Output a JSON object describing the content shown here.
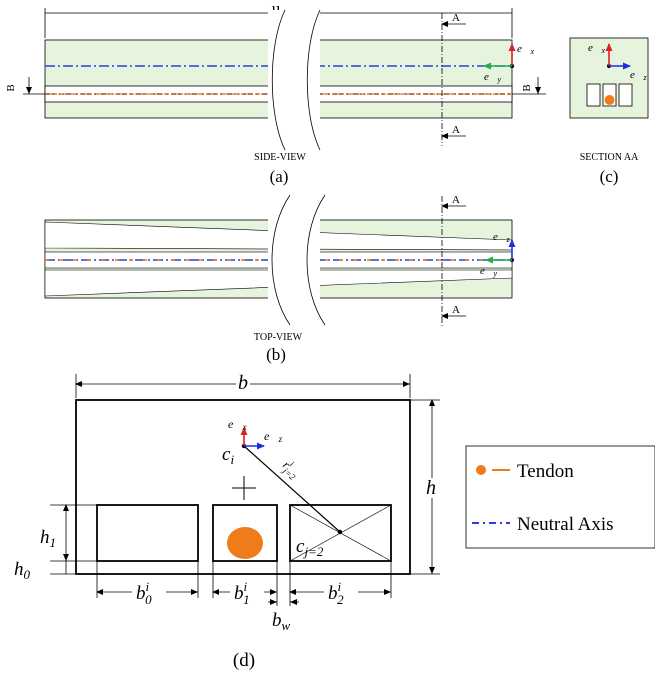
{
  "side_view": {
    "length_label": "u",
    "caption": "SIDE-VIEW",
    "panel_label": "(a)",
    "section_mark_a": "A",
    "section_mark_b": "B"
  },
  "section_aa": {
    "caption": "SECTION AA",
    "panel_label": "(c)"
  },
  "top_view": {
    "caption": "TOP-VIEW",
    "panel_label": "(b)",
    "section_mark_a": "A"
  },
  "axes": {
    "ex": "e⃗x",
    "ey": "e⃗y",
    "ez": "e⃗z",
    "ex_base": "e⃗",
    "ex_sub": "x",
    "ey_base": "e⃗",
    "ey_sub": "y",
    "ez_base": "e⃗",
    "ez_sub": "z"
  },
  "cross_section": {
    "panel_label": "(d)",
    "width_label": "b",
    "height_label": "h",
    "h1": {
      "base": "h",
      "sub": "1"
    },
    "h0": {
      "base": "h",
      "sub": "0"
    },
    "ci": {
      "base": "c",
      "sub": "i"
    },
    "cj": {
      "base": "c",
      "sub": "j=2"
    },
    "r": {
      "base": "r",
      "sup": "i",
      "sub": "j=2"
    },
    "b0": {
      "base": "b",
      "sup": "i",
      "sub": "0"
    },
    "b1": {
      "base": "b",
      "sup": "i",
      "sub": "1"
    },
    "b2": {
      "base": "b",
      "sup": "i",
      "sub": "2"
    },
    "bw": {
      "base": "b",
      "sub": "w"
    }
  },
  "legend": {
    "items": [
      {
        "label": "Tendon",
        "color": "#f07b1a"
      },
      {
        "label": "Neutral Axis",
        "color": "#2c3fd6"
      }
    ]
  },
  "colors": {
    "fill": "#e6f4dd",
    "tendon": "#f07b1a",
    "axis_blue": "#2c3fd6",
    "ex_red": "#e02020",
    "ey_green": "#22b04a",
    "ez_blue": "#1c2fe0"
  }
}
